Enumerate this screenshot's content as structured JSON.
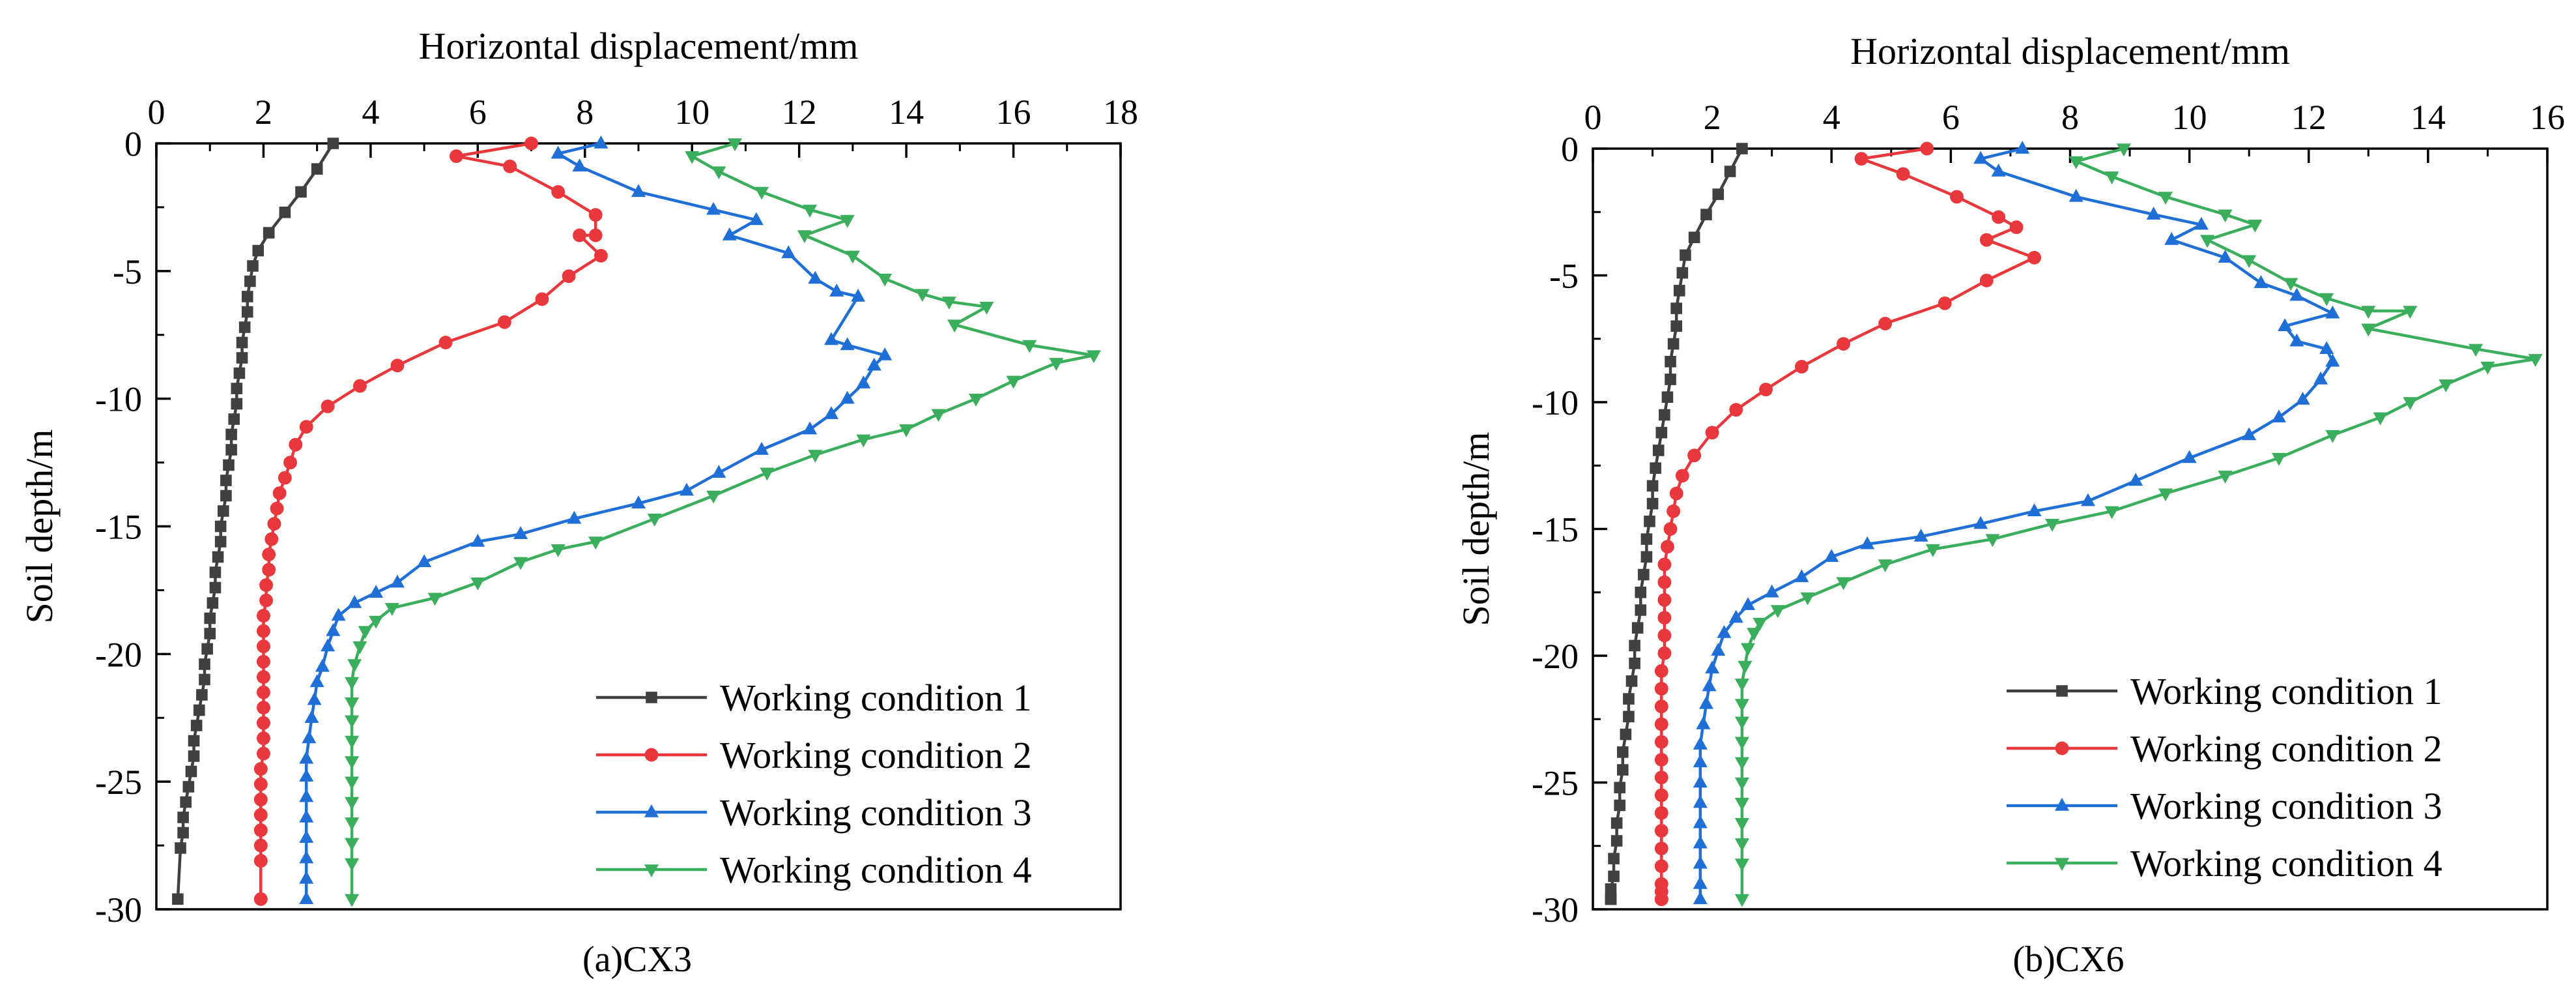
{
  "chart_data": [
    {
      "type": "line",
      "caption": "(a)CX3",
      "xlabel": "Horizontal displacement/mm",
      "ylabel": "Soil depth/m",
      "xlim": [
        0,
        18
      ],
      "ylim": [
        -30,
        0
      ],
      "xticks": [
        0,
        2,
        4,
        6,
        8,
        10,
        12,
        14,
        16,
        18
      ],
      "yticks": [
        0,
        -5,
        -10,
        -15,
        -20,
        -25,
        -30
      ],
      "legend_position": "bottom-right",
      "grid": false,
      "series": [
        {
          "name": "Working condition 1",
          "color": "#404040",
          "marker": "square",
          "x": [
            3.3,
            3.0,
            2.7,
            2.4,
            2.1,
            1.9,
            1.8,
            1.75,
            1.7,
            1.7,
            1.65,
            1.6,
            1.6,
            1.55,
            1.5,
            1.5,
            1.45,
            1.4,
            1.4,
            1.35,
            1.3,
            1.3,
            1.25,
            1.2,
            1.2,
            1.15,
            1.1,
            1.1,
            1.05,
            1.0,
            1.0,
            0.95,
            0.9,
            0.9,
            0.85,
            0.8,
            0.75,
            0.7,
            0.7,
            0.65,
            0.6,
            0.55,
            0.5,
            0.5,
            0.45,
            0.4
          ],
          "y": [
            0,
            -1.0,
            -1.9,
            -2.7,
            -3.5,
            -4.2,
            -4.8,
            -5.4,
            -6.0,
            -6.6,
            -7.2,
            -7.8,
            -8.4,
            -9.0,
            -9.6,
            -10.2,
            -10.8,
            -11.4,
            -12.0,
            -12.6,
            -13.2,
            -13.8,
            -14.4,
            -15.0,
            -15.6,
            -16.2,
            -16.8,
            -17.4,
            -18.0,
            -18.6,
            -19.2,
            -19.8,
            -20.4,
            -21.0,
            -21.6,
            -22.2,
            -22.8,
            -23.4,
            -24.0,
            -24.6,
            -25.2,
            -25.8,
            -26.4,
            -27.0,
            -27.6,
            -29.6
          ]
        },
        {
          "name": "Working condition 2",
          "color": "#e8383d",
          "marker": "circle",
          "x": [
            7.0,
            5.6,
            6.6,
            7.5,
            8.2,
            8.2,
            7.9,
            8.3,
            7.7,
            7.2,
            6.5,
            5.4,
            4.5,
            3.8,
            3.2,
            2.8,
            2.6,
            2.5,
            2.4,
            2.3,
            2.25,
            2.2,
            2.15,
            2.1,
            2.1,
            2.05,
            2.05,
            2.0,
            2.0,
            2.0,
            2.0,
            2.0,
            2.0,
            2.0,
            2.0,
            2.0,
            2.0,
            1.95,
            1.95,
            1.95,
            1.95,
            1.95,
            1.95,
            1.95,
            1.95
          ],
          "y": [
            0,
            -0.5,
            -0.9,
            -1.9,
            -2.8,
            -3.6,
            -3.6,
            -4.4,
            -5.2,
            -6.1,
            -7.0,
            -7.8,
            -8.7,
            -9.5,
            -10.3,
            -11.1,
            -11.8,
            -12.5,
            -13.1,
            -13.7,
            -14.3,
            -14.9,
            -15.5,
            -16.1,
            -16.7,
            -17.3,
            -17.9,
            -18.5,
            -19.1,
            -19.7,
            -20.3,
            -20.9,
            -21.5,
            -22.1,
            -22.7,
            -23.3,
            -23.9,
            -24.5,
            -25.1,
            -25.7,
            -26.3,
            -26.9,
            -27.5,
            -28.1,
            -29.6
          ]
        },
        {
          "name": "Working condition 3",
          "color": "#1f6fd6",
          "marker": "triangle-up",
          "x": [
            8.3,
            7.5,
            7.9,
            9.0,
            10.4,
            11.2,
            10.7,
            11.8,
            12.3,
            12.7,
            13.1,
            12.6,
            12.9,
            13.6,
            13.4,
            13.2,
            12.9,
            12.6,
            12.2,
            11.3,
            10.5,
            9.9,
            9.0,
            7.8,
            6.8,
            6.0,
            5.0,
            4.5,
            4.1,
            3.7,
            3.4,
            3.3,
            3.2,
            3.1,
            3.0,
            2.95,
            2.9,
            2.85,
            2.8,
            2.8,
            2.8,
            2.8,
            2.8,
            2.8,
            2.8,
            2.8
          ],
          "y": [
            0,
            -0.4,
            -0.9,
            -1.9,
            -2.6,
            -3.0,
            -3.6,
            -4.3,
            -5.3,
            -5.8,
            -6.0,
            -7.7,
            -7.9,
            -8.3,
            -8.7,
            -9.4,
            -10.0,
            -10.6,
            -11.2,
            -12.0,
            -12.9,
            -13.6,
            -14.1,
            -14.7,
            -15.3,
            -15.6,
            -16.4,
            -17.2,
            -17.6,
            -18.0,
            -18.5,
            -19.1,
            -19.7,
            -20.5,
            -21.1,
            -21.8,
            -22.5,
            -23.3,
            -24.1,
            -24.8,
            -25.6,
            -26.4,
            -27.2,
            -28.0,
            -28.8,
            -29.6
          ]
        },
        {
          "name": "Working condition 4",
          "color": "#3aae5c",
          "marker": "triangle-down",
          "x": [
            10.8,
            10.0,
            10.5,
            11.3,
            12.2,
            12.9,
            12.1,
            13.0,
            13.6,
            14.3,
            14.8,
            15.5,
            14.9,
            16.3,
            17.5,
            16.8,
            16.0,
            15.3,
            14.6,
            14.0,
            13.2,
            12.3,
            11.4,
            10.4,
            9.3,
            8.2,
            7.5,
            6.8,
            6.0,
            5.2,
            4.4,
            4.1,
            3.9,
            3.8,
            3.7,
            3.65,
            3.65,
            3.65,
            3.65,
            3.65,
            3.65,
            3.65,
            3.65,
            3.65,
            3.65,
            3.65
          ],
          "y": [
            0,
            -0.5,
            -1.1,
            -1.9,
            -2.6,
            -3.0,
            -3.6,
            -4.4,
            -5.3,
            -5.9,
            -6.2,
            -6.4,
            -7.1,
            -7.9,
            -8.3,
            -8.6,
            -9.3,
            -10.0,
            -10.6,
            -11.2,
            -11.6,
            -12.2,
            -12.9,
            -13.8,
            -14.7,
            -15.6,
            -15.9,
            -16.4,
            -17.2,
            -17.8,
            -18.2,
            -18.7,
            -19.1,
            -19.7,
            -20.4,
            -21.1,
            -21.9,
            -22.6,
            -23.4,
            -24.2,
            -25.0,
            -25.8,
            -26.6,
            -27.4,
            -28.2,
            -29.6
          ]
        }
      ]
    },
    {
      "type": "line",
      "caption": "(b)CX6",
      "xlabel": "Horizontal displacement/mm",
      "ylabel": "Soil depth/m",
      "xlim": [
        0,
        16
      ],
      "ylim": [
        -30,
        0
      ],
      "xticks": [
        0,
        2,
        4,
        6,
        8,
        10,
        12,
        14,
        16
      ],
      "yticks": [
        0,
        -5,
        -10,
        -15,
        -20,
        -25,
        -30
      ],
      "legend_position": "bottom-right",
      "grid": false,
      "series": [
        {
          "name": "Working condition 1",
          "color": "#404040",
          "marker": "square",
          "x": [
            2.5,
            2.3,
            2.1,
            1.9,
            1.7,
            1.55,
            1.5,
            1.45,
            1.4,
            1.4,
            1.35,
            1.3,
            1.3,
            1.25,
            1.2,
            1.15,
            1.1,
            1.05,
            1.0,
            1.0,
            0.95,
            0.9,
            0.9,
            0.85,
            0.8,
            0.8,
            0.75,
            0.7,
            0.7,
            0.65,
            0.6,
            0.6,
            0.55,
            0.5,
            0.5,
            0.45,
            0.45,
            0.4,
            0.4,
            0.35,
            0.35,
            0.3,
            0.3,
            0.3,
            0.3
          ],
          "y": [
            0,
            -0.9,
            -1.8,
            -2.6,
            -3.5,
            -4.2,
            -4.9,
            -5.6,
            -6.3,
            -7.0,
            -7.7,
            -8.4,
            -9.1,
            -9.8,
            -10.5,
            -11.2,
            -11.9,
            -12.6,
            -13.3,
            -14.0,
            -14.7,
            -15.4,
            -16.1,
            -16.8,
            -17.5,
            -18.2,
            -18.9,
            -19.6,
            -20.3,
            -21.0,
            -21.7,
            -22.4,
            -23.1,
            -23.8,
            -24.5,
            -25.2,
            -25.9,
            -26.6,
            -27.3,
            -28.0,
            -28.7,
            -29.2,
            -29.6,
            -29.6,
            -29.6
          ]
        },
        {
          "name": "Working condition 2",
          "color": "#e8383d",
          "marker": "circle",
          "x": [
            5.6,
            4.5,
            5.2,
            6.1,
            6.8,
            7.1,
            6.6,
            7.4,
            6.6,
            5.9,
            4.9,
            4.2,
            3.5,
            2.9,
            2.4,
            2.0,
            1.7,
            1.5,
            1.4,
            1.35,
            1.3,
            1.25,
            1.2,
            1.2,
            1.2,
            1.2,
            1.2,
            1.2,
            1.15,
            1.15,
            1.15,
            1.15,
            1.15,
            1.15,
            1.15,
            1.15,
            1.15,
            1.15,
            1.15,
            1.15,
            1.15,
            1.15,
            1.15,
            1.15,
            1.15
          ],
          "y": [
            0,
            -0.4,
            -1.0,
            -1.9,
            -2.7,
            -3.1,
            -3.6,
            -4.3,
            -5.2,
            -6.1,
            -6.9,
            -7.7,
            -8.6,
            -9.5,
            -10.3,
            -11.2,
            -12.1,
            -12.9,
            -13.6,
            -14.3,
            -15.0,
            -15.7,
            -16.4,
            -17.1,
            -17.8,
            -18.5,
            -19.2,
            -19.9,
            -20.6,
            -21.3,
            -22.0,
            -22.7,
            -23.4,
            -24.1,
            -24.8,
            -25.5,
            -26.2,
            -26.9,
            -27.6,
            -28.3,
            -29.0,
            -29.3,
            -29.6,
            -29.6,
            -29.6
          ]
        },
        {
          "name": "Working condition 3",
          "color": "#1f6fd6",
          "marker": "triangle-up",
          "x": [
            7.2,
            6.5,
            6.8,
            8.1,
            9.4,
            10.2,
            9.7,
            10.6,
            11.2,
            11.8,
            12.4,
            11.6,
            11.8,
            12.3,
            12.4,
            12.2,
            11.9,
            11.5,
            11.0,
            10.0,
            9.1,
            8.3,
            7.4,
            6.5,
            5.5,
            4.6,
            4.0,
            3.5,
            3.0,
            2.6,
            2.4,
            2.2,
            2.1,
            2.0,
            1.95,
            1.9,
            1.85,
            1.8,
            1.8,
            1.8,
            1.8,
            1.8,
            1.8,
            1.8,
            1.8,
            1.8
          ],
          "y": [
            0,
            -0.4,
            -0.9,
            -1.9,
            -2.6,
            -3.0,
            -3.6,
            -4.3,
            -5.3,
            -5.8,
            -6.5,
            -7.0,
            -7.6,
            -7.9,
            -8.4,
            -9.1,
            -9.9,
            -10.6,
            -11.3,
            -12.2,
            -13.1,
            -13.9,
            -14.3,
            -14.8,
            -15.3,
            -15.6,
            -16.1,
            -16.9,
            -17.5,
            -18.0,
            -18.5,
            -19.1,
            -19.8,
            -20.5,
            -21.2,
            -21.9,
            -22.7,
            -23.5,
            -24.2,
            -25.0,
            -25.8,
            -26.6,
            -27.4,
            -28.2,
            -29.0,
            -29.6
          ]
        },
        {
          "name": "Working condition 4",
          "color": "#3aae5c",
          "marker": "triangle-down",
          "x": [
            8.9,
            8.1,
            8.7,
            9.6,
            10.6,
            11.1,
            10.3,
            11.0,
            11.7,
            12.3,
            13.0,
            13.7,
            13.0,
            14.8,
            15.8,
            15.0,
            14.3,
            13.7,
            13.2,
            12.4,
            11.5,
            10.6,
            9.6,
            8.7,
            7.7,
            6.7,
            5.7,
            4.9,
            4.2,
            3.6,
            3.1,
            2.8,
            2.7,
            2.6,
            2.55,
            2.5,
            2.5,
            2.5,
            2.5,
            2.5,
            2.5,
            2.5,
            2.5,
            2.5,
            2.5,
            2.5
          ],
          "y": [
            0,
            -0.5,
            -1.1,
            -1.9,
            -2.6,
            -3.0,
            -3.6,
            -4.4,
            -5.3,
            -5.9,
            -6.4,
            -6.4,
            -7.1,
            -7.9,
            -8.3,
            -8.6,
            -9.3,
            -10.0,
            -10.6,
            -11.3,
            -12.2,
            -12.9,
            -13.6,
            -14.3,
            -14.8,
            -15.4,
            -15.8,
            -16.4,
            -17.1,
            -17.7,
            -18.2,
            -18.7,
            -19.1,
            -19.7,
            -20.4,
            -21.1,
            -21.9,
            -22.6,
            -23.4,
            -24.2,
            -25.0,
            -25.8,
            -26.6,
            -27.4,
            -28.2,
            -29.6
          ]
        }
      ]
    }
  ]
}
